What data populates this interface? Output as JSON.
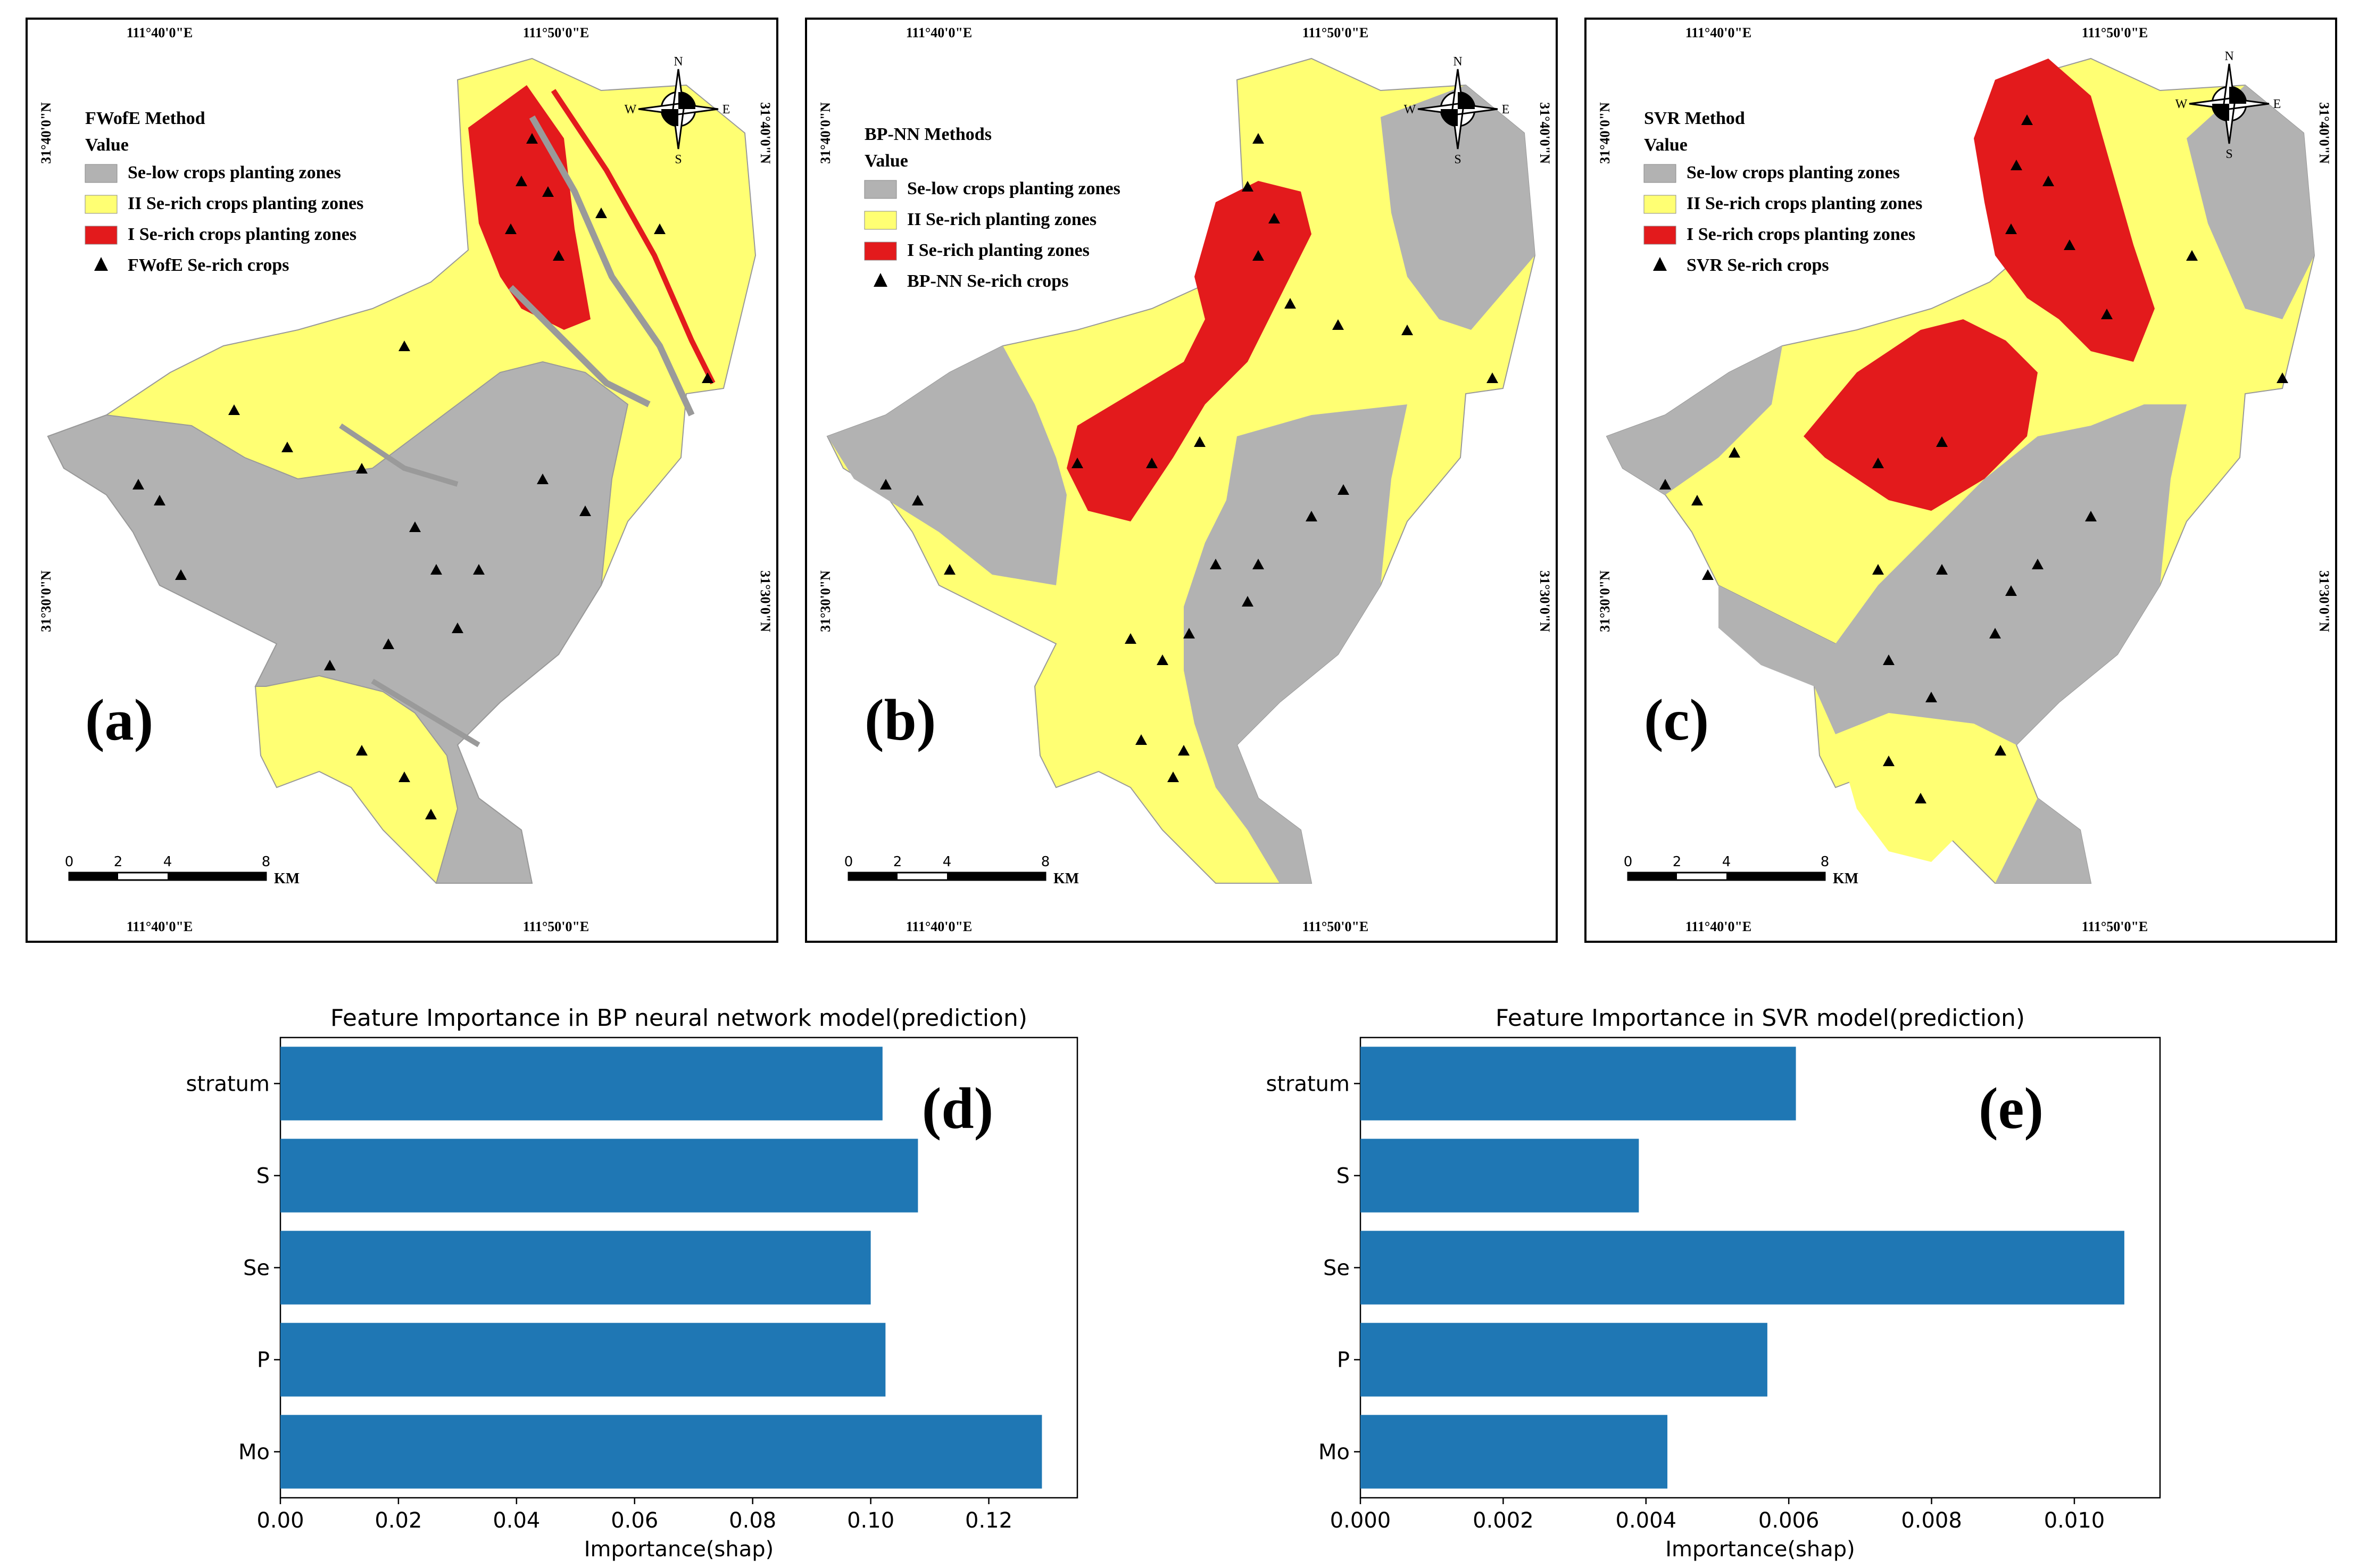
{
  "colors": {
    "low": "#b2b2b2",
    "mid": "#ffff73",
    "high": "#e31a1c",
    "bar": "#1f77b4",
    "frame": "#000000"
  },
  "coords": {
    "lon_left": "111°40'0\"E",
    "lon_right": "111°50'0\"E",
    "lat_top": "31°40'0\"N",
    "lat_bottom": "31°30'0\"N"
  },
  "compass": {
    "n": "N",
    "s": "S",
    "e": "E",
    "w": "W"
  },
  "scale": {
    "ticks": [
      "0",
      "2",
      "4",
      "8"
    ],
    "unit": "KM"
  },
  "maps": [
    {
      "label": "(a)",
      "legend_title": "FWofE Method",
      "legend_value": "Value",
      "legend_items": [
        "Se-low crops planting zones",
        "II Se-rich crops planting zones",
        "I Se-rich crops planting zones",
        "FWofE Se-rich crops"
      ]
    },
    {
      "label": "(b)",
      "legend_title": "BP-NN Methods",
      "legend_value": "Value",
      "legend_items": [
        "Se-low crops planting zones",
        "II Se-rich planting zones",
        "I Se-rich planting zones",
        "BP-NN Se-rich crops"
      ]
    },
    {
      "label": "(c)",
      "legend_title": "SVR Method",
      "legend_value": "Value",
      "legend_items": [
        "Se-low crops planting zones",
        "II Se-rich crops planting zones",
        "I Se-rich crops planting zones",
        "SVR Se-rich crops"
      ]
    }
  ],
  "chart_data": [
    {
      "type": "bar",
      "orientation": "horizontal",
      "title": "Feature Importance in BP neural network model(prediction)",
      "panel_label": "(d)",
      "categories": [
        "stratum",
        "S",
        "Se",
        "P",
        "Mo"
      ],
      "values": [
        0.102,
        0.108,
        0.1,
        0.1025,
        0.129
      ],
      "xlabel": "Importance(shap)",
      "ylabel": "",
      "xlim": [
        0,
        0.135
      ],
      "xticks": [
        0,
        0.02,
        0.04,
        0.06,
        0.08,
        0.1,
        0.12
      ],
      "xtick_labels": [
        "0.00",
        "0.02",
        "0.04",
        "0.06",
        "0.08",
        "0.10",
        "0.12"
      ]
    },
    {
      "type": "bar",
      "orientation": "horizontal",
      "title": "Feature Importance in SVR model(prediction)",
      "panel_label": "(e)",
      "categories": [
        "stratum",
        "S",
        "Se",
        "P",
        "Mo"
      ],
      "values": [
        0.0061,
        0.0039,
        0.0107,
        0.0057,
        0.0043
      ],
      "xlabel": "Importance(shap)",
      "ylabel": "",
      "xlim": [
        0,
        0.0112
      ],
      "xticks": [
        0,
        0.002,
        0.004,
        0.006,
        0.008,
        0.01
      ],
      "xtick_labels": [
        "0.000",
        "0.002",
        "0.004",
        "0.006",
        "0.008",
        "0.010"
      ]
    }
  ]
}
